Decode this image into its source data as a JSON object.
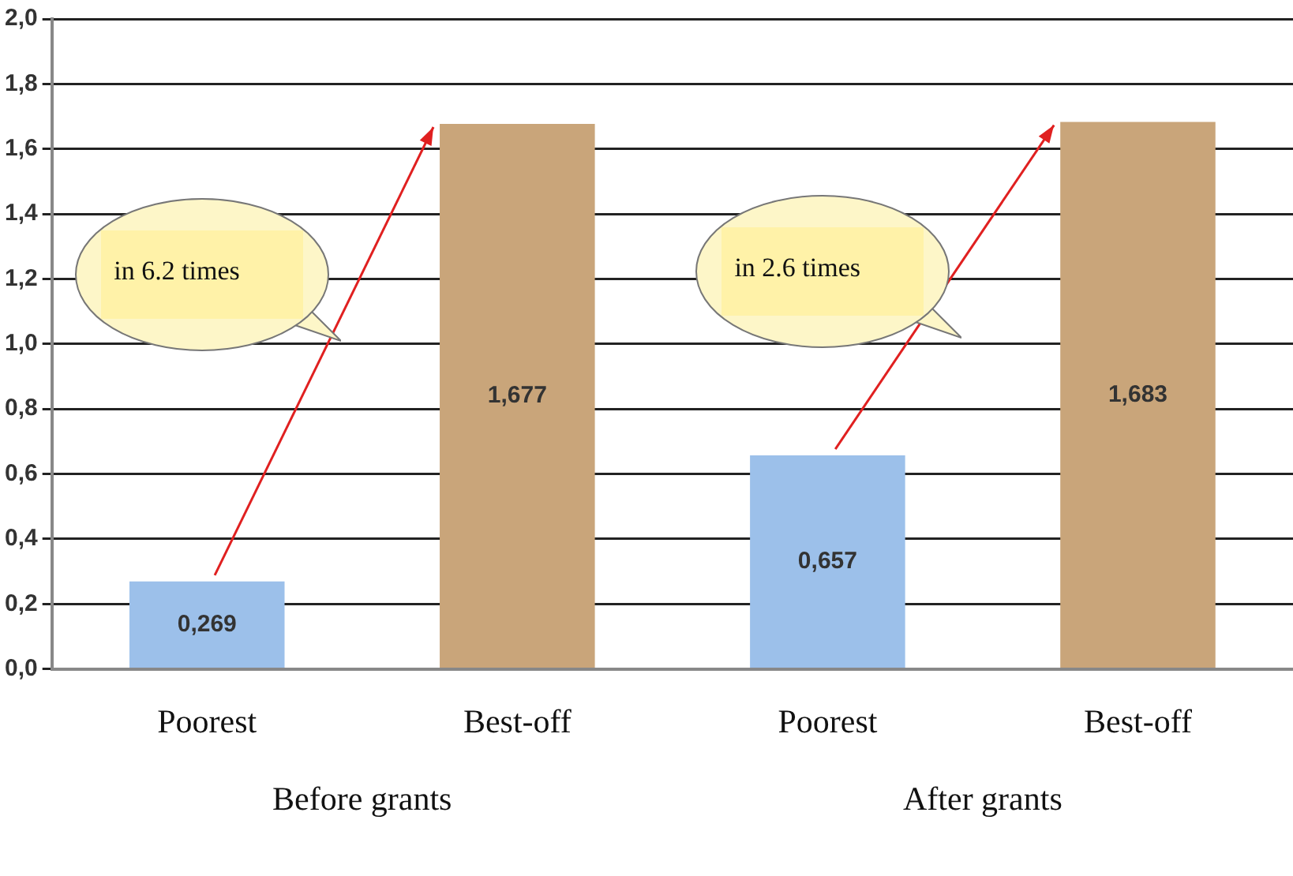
{
  "chart_data": {
    "type": "bar",
    "categories": [
      "Poorest",
      "Best-off",
      "Poorest",
      "Best-off"
    ],
    "values": [
      0.269,
      1.677,
      0.657,
      1.683
    ],
    "colors": [
      "#9cc0ea",
      "#c9a57a",
      "#9cc0ea",
      "#c9a57a"
    ],
    "value_labels": [
      "0,269",
      "1,677",
      "0,657",
      "1,683"
    ],
    "ylim": [
      0,
      2
    ],
    "yticks": [
      {
        "value": 0,
        "label": "0,0"
      },
      {
        "value": 0.2,
        "label": "0,2"
      },
      {
        "value": 0.4,
        "label": "0,4"
      },
      {
        "value": 0.6,
        "label": "0,6"
      },
      {
        "value": 0.8,
        "label": "0,8"
      },
      {
        "value": 1,
        "label": "1,0"
      },
      {
        "value": 1.2,
        "label": "1,2"
      },
      {
        "value": 1.4,
        "label": "1,4"
      },
      {
        "value": 1.6,
        "label": "1,6"
      },
      {
        "value": 1.8,
        "label": "1,8"
      },
      {
        "value": 2,
        "label": "2,0"
      }
    ],
    "grid": "y",
    "legend": false,
    "annotations": [
      "in 6.2 times",
      "in 2.6 times",
      "Before grants",
      "After grants"
    ]
  }
}
